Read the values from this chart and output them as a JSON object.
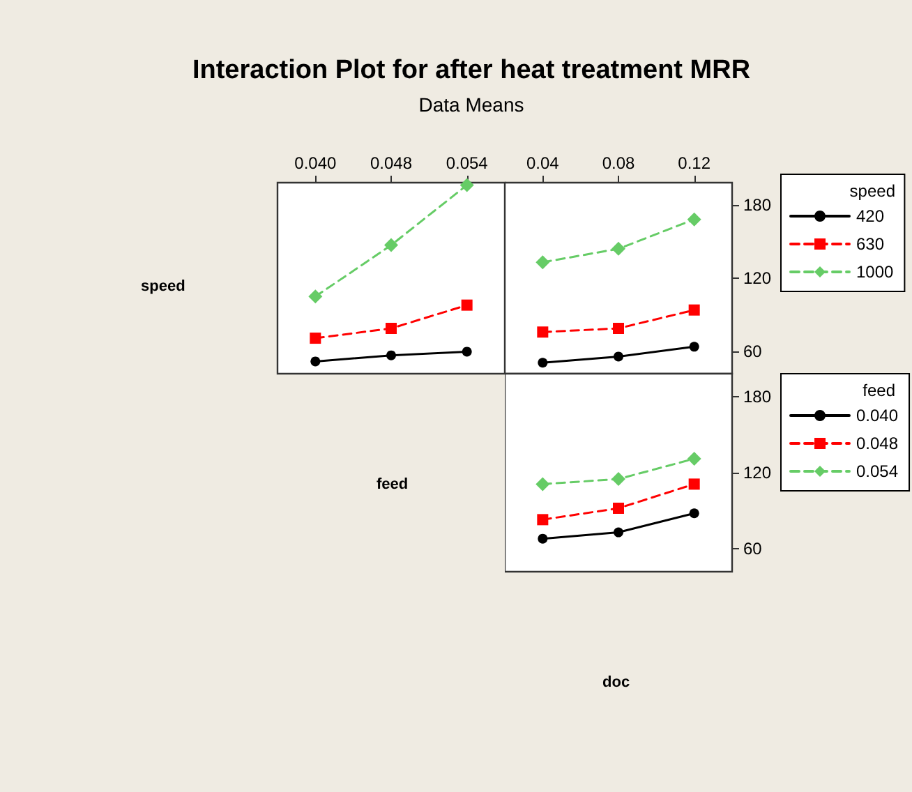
{
  "chart_data": [
    {
      "type": "line",
      "title": "Interaction Plot for after heat treatment MRR",
      "subtitle": "Data Means",
      "ylabel": "speed",
      "xlabel": "feed",
      "categories": [
        "0.040",
        "0.048",
        "0.054"
      ],
      "ylim": [
        42,
        198
      ],
      "yticks": [
        60,
        120,
        180
      ],
      "tick_labels": "x",
      "grid": false,
      "legend": false,
      "series": [
        {
          "color": "#000000",
          "marker": "circle",
          "line_style": "solid",
          "values": [
            52,
            57,
            60
          ]
        },
        {
          "color": "#ff0000",
          "marker": "square",
          "line_style": "dashed",
          "values": [
            71,
            79,
            98
          ]
        },
        {
          "color": "#66cc66",
          "marker": "diamond",
          "line_style": "dashed",
          "values": [
            105,
            147,
            196
          ]
        }
      ]
    },
    {
      "type": "line",
      "legend_title": "speed",
      "categories": [
        "0.04",
        "0.08",
        "0.12"
      ],
      "ylim": [
        42,
        198
      ],
      "yticks": [
        60,
        120,
        180
      ],
      "grid": false,
      "legend": "right",
      "series": [
        {
          "name": "420",
          "color": "#000000",
          "marker": "circle",
          "line_style": "solid",
          "values": [
            51,
            56,
            64
          ]
        },
        {
          "name": "630",
          "color": "#ff0000",
          "marker": "square",
          "line_style": "dashed",
          "values": [
            76,
            79,
            94
          ]
        },
        {
          "name": "1000",
          "color": "#66cc66",
          "marker": "diamond",
          "line_style": "dashed",
          "values": [
            133,
            144,
            168
          ]
        }
      ]
    },
    {
      "type": "line",
      "xlabel": "doc",
      "legend_title": "feed",
      "categories": [
        "0.04",
        "0.08",
        "0.12"
      ],
      "ylim": [
        42,
        198
      ],
      "yticks": [
        60,
        120,
        180
      ],
      "tick_labels": "y",
      "grid": false,
      "legend": "right",
      "series": [
        {
          "name": "0.040",
          "color": "#000000",
          "marker": "circle",
          "line_style": "solid",
          "values": [
            68,
            73,
            88
          ]
        },
        {
          "name": "0.048",
          "color": "#ff0000",
          "marker": "square",
          "line_style": "dashed",
          "values": [
            83,
            92,
            111
          ]
        },
        {
          "name": "0.054",
          "color": "#66cc66",
          "marker": "diamond",
          "line_style": "dashed",
          "values": [
            111,
            115,
            131
          ]
        }
      ]
    }
  ]
}
